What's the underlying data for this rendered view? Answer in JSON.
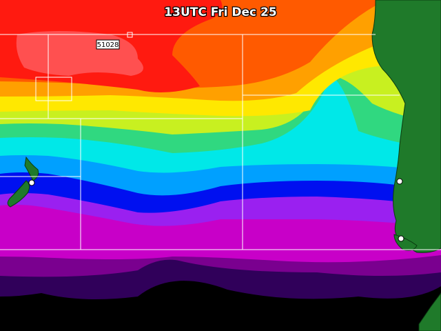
{
  "map": {
    "title": "13UTC Fri Dec 25",
    "station_label": "51028"
  }
}
